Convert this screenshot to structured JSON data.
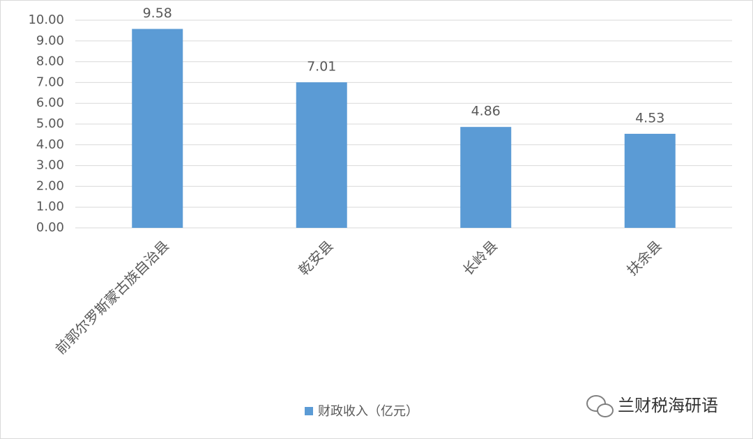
{
  "chart_data": {
    "type": "bar",
    "categories": [
      "前郭尔罗斯蒙古族自治县",
      "乾安县",
      "长岭县",
      "扶余县"
    ],
    "series": [
      {
        "name": "财政收入（亿元）",
        "color": "#5b9bd5",
        "values": [
          9.58,
          7.01,
          4.86,
          4.53
        ]
      }
    ],
    "ylim": [
      0,
      10
    ],
    "yticks": [
      {
        "value": 0,
        "label": "0.00"
      },
      {
        "value": 1,
        "label": "1.00"
      },
      {
        "value": 2,
        "label": "2.00"
      },
      {
        "value": 3,
        "label": "3.00"
      },
      {
        "value": 4,
        "label": "4.00"
      },
      {
        "value": 5,
        "label": "5.00"
      },
      {
        "value": 6,
        "label": "6.00"
      },
      {
        "value": 7,
        "label": "7.00"
      },
      {
        "value": 8,
        "label": "8.00"
      },
      {
        "value": 9,
        "label": "9.00"
      },
      {
        "value": 10,
        "label": "10.00"
      }
    ],
    "grid": true,
    "legend": "bottom",
    "watermark": "兰财税海研语"
  }
}
